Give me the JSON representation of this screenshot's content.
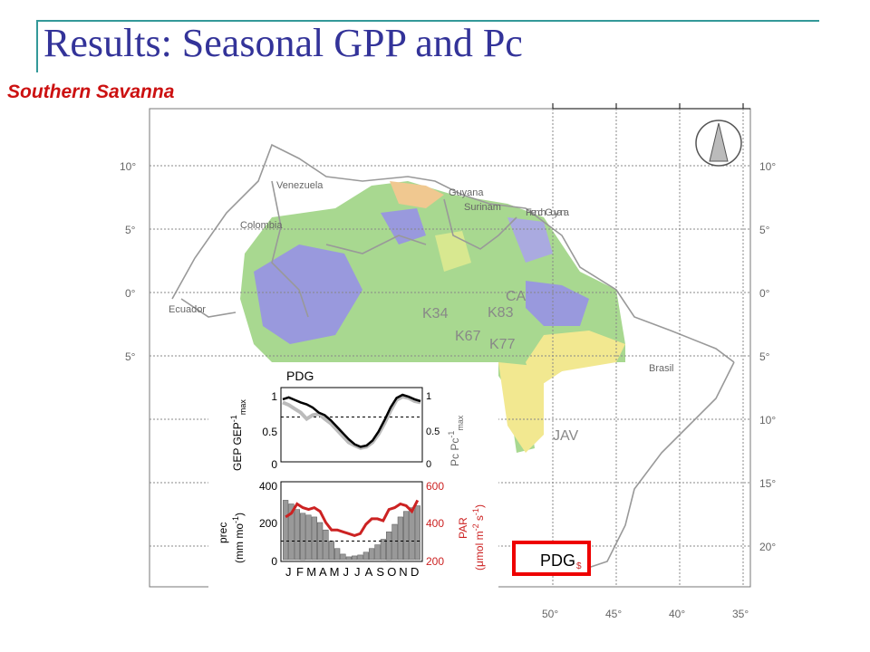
{
  "slide": {
    "title": "Results: Seasonal GPP and Pc",
    "subtitle": "Southern Savanna"
  },
  "map": {
    "lat_labels": [
      "10°",
      "5°",
      "0°",
      "5°",
      "10°",
      "15°",
      "20°"
    ],
    "lon_labels": [
      "50°",
      "45°",
      "40°",
      "35°"
    ],
    "countries": [
      "Venezuela",
      "Colombia",
      "Guyana",
      "Surinam",
      "French Guyana",
      "Ecuador",
      "Brasil"
    ],
    "sites": [
      "CA",
      "K83",
      "K34",
      "K67",
      "K77",
      "JAV"
    ],
    "highlight_site": "PDG",
    "colors": {
      "outline": "#999999",
      "highlight_box": "#ee0000",
      "forest": "#a8d890",
      "wet": "#9999dd",
      "dry": "#f2e890"
    },
    "north_arrow": "north-arrow-icon"
  },
  "inset": {
    "site_title": "PDG",
    "top_panel": {
      "y_left_label": "GEP GEP",
      "y_left_sup": "-1",
      "y_left_sub": "max",
      "y_right_label": "Pc Pc",
      "y_right_sup": "-1",
      "y_right_sub": "max",
      "y_ticks": [
        "1",
        "0.5",
        "0"
      ],
      "y_right_ticks": [
        "1",
        "0.5",
        "0"
      ]
    },
    "bottom_panel": {
      "y_left_label": "prec",
      "y_left_label2": "(mm mo",
      "y_left_sup": "-1",
      "y_left_close": ")",
      "y_right_label": "PAR",
      "y_right_label2": "(μmol m",
      "y_right_sup2": "-2",
      "y_right_mid": " s",
      "y_right_sup3": "-1",
      "y_right_close": ")",
      "y_ticks": [
        "400",
        "200",
        "0"
      ],
      "y_right_ticks": [
        "600",
        "400",
        "200"
      ],
      "months": [
        "J",
        "F",
        "M",
        "A",
        "M",
        "J",
        "J",
        "A",
        "S",
        "O",
        "N",
        "D"
      ]
    },
    "colors": {
      "gep": "#000000",
      "pc": "#bbbbbb",
      "bars": "#999999",
      "par": "#cc2222",
      "right_axis": "#cc2222"
    }
  },
  "chart_data": [
    {
      "type": "line",
      "panel": "top",
      "ylim": [
        0,
        1
      ],
      "series": [
        {
          "name": "GEP GEP-1 max",
          "x": [
            1,
            1.5,
            2,
            2.5,
            3,
            3.5,
            4,
            4.5,
            5,
            5.5,
            6,
            6.5,
            7,
            7.5,
            8,
            8.5,
            9,
            9.5,
            10,
            10.5,
            11,
            11.5,
            12,
            12.5
          ],
          "values": [
            0.93,
            0.96,
            0.92,
            0.88,
            0.85,
            0.8,
            0.72,
            0.68,
            0.6,
            0.5,
            0.4,
            0.3,
            0.22,
            0.18,
            0.2,
            0.28,
            0.42,
            0.6,
            0.8,
            0.95,
            1.0,
            0.97,
            0.93,
            0.9
          ]
        },
        {
          "name": "Pc Pc-1 max",
          "x": [
            1,
            1.5,
            2,
            2.5,
            3,
            3.5,
            4,
            4.5,
            5,
            5.5,
            6,
            6.5,
            7,
            7.5,
            8,
            8.5,
            9,
            9.5,
            10,
            10.5,
            11,
            11.5,
            12,
            12.5
          ],
          "values": [
            0.88,
            0.84,
            0.78,
            0.72,
            0.62,
            0.68,
            0.7,
            0.62,
            0.55,
            0.45,
            0.35,
            0.25,
            0.2,
            0.16,
            0.18,
            0.25,
            0.38,
            0.55,
            0.75,
            0.92,
            0.97,
            0.95,
            0.9,
            0.88
          ]
        }
      ],
      "reference_line": 0.65
    },
    {
      "type": "bar",
      "panel": "bottom",
      "ylim": [
        0,
        400
      ],
      "x": [
        1,
        1.5,
        2,
        2.5,
        3,
        3.5,
        4,
        4.5,
        5,
        5.5,
        6,
        6.5,
        7,
        7.5,
        8,
        8.5,
        9,
        9.5,
        10,
        10.5,
        11,
        11.5,
        12,
        12.5
      ],
      "values": [
        320,
        300,
        270,
        250,
        240,
        230,
        200,
        160,
        100,
        60,
        30,
        15,
        20,
        25,
        40,
        60,
        80,
        110,
        150,
        190,
        230,
        260,
        280,
        290
      ],
      "reference_line": 100,
      "line_series": {
        "name": "PAR",
        "ylim": [
          200,
          600
        ],
        "values": [
          430,
          450,
          500,
          480,
          470,
          480,
          460,
          400,
          360,
          360,
          350,
          340,
          330,
          340,
          390,
          420,
          420,
          410,
          470,
          480,
          500,
          490,
          460,
          520
        ]
      }
    }
  ]
}
